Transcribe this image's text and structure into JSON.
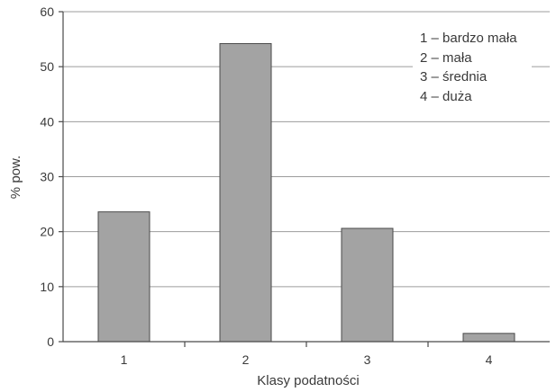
{
  "chart_data": {
    "type": "bar",
    "categories": [
      "1",
      "2",
      "3",
      "4"
    ],
    "values": [
      23.6,
      54.2,
      20.6,
      1.5
    ],
    "title": "",
    "xlabel": "Klasy podatności",
    "ylabel": "% pow.",
    "ylim": [
      0,
      60
    ],
    "yticks": [
      "0",
      "10",
      "20",
      "30",
      "40",
      "50",
      "60"
    ],
    "grid": true,
    "legend_position": "top-right",
    "legend": [
      "1 – bardzo mała",
      "2 – mała",
      "3 – średnia",
      "4 – duża"
    ],
    "colors": {
      "bar": "#a3a3a3",
      "bar_edge": "#4a4a4a",
      "grid": "#9c9c9c",
      "text": "#3a3a3a"
    }
  }
}
